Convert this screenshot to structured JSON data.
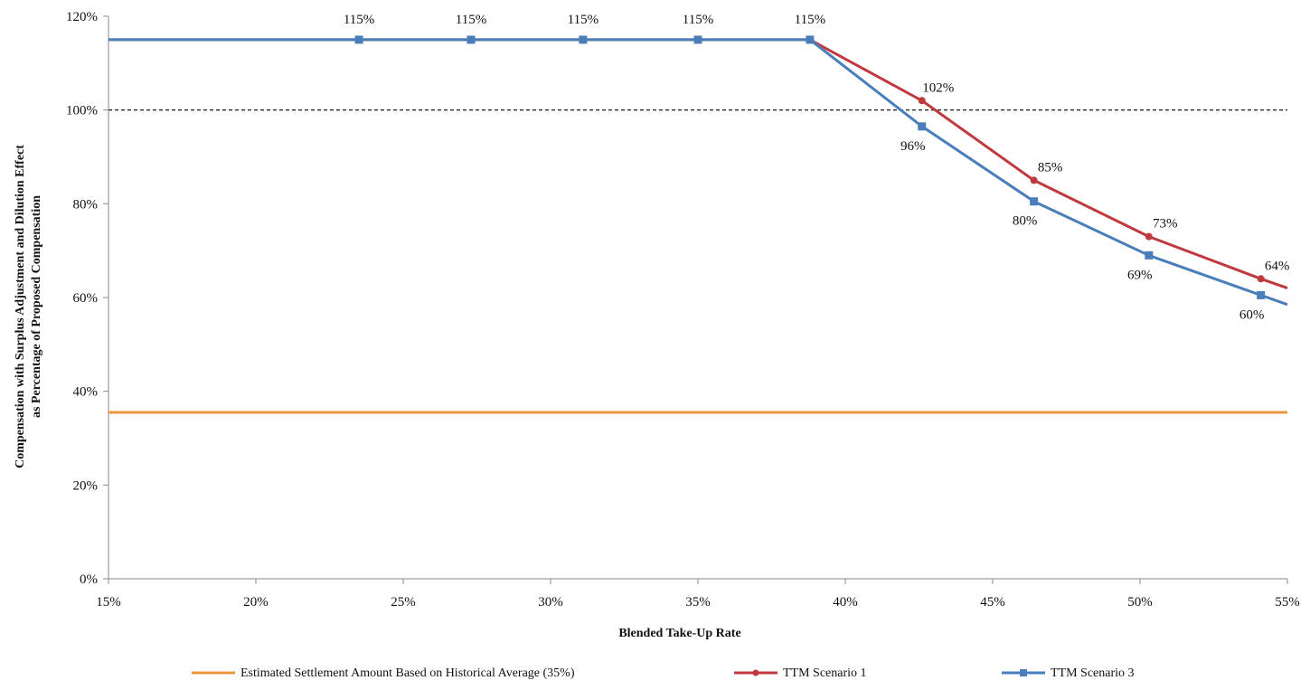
{
  "chart_data": {
    "type": "line",
    "title": "",
    "xlabel": "Blended Take-Up Rate",
    "ylabel_line1": "Compensation with Surplus Adjustment and Dilution Effect",
    "ylabel_line2": "as Percentage of Proposed Compensation",
    "xlim": [
      15,
      55
    ],
    "ylim": [
      0,
      120
    ],
    "x_ticks": [
      15,
      20,
      25,
      30,
      35,
      40,
      45,
      50,
      55
    ],
    "x_tick_labels": [
      "15%",
      "20%",
      "25%",
      "30%",
      "35%",
      "40%",
      "45%",
      "50%",
      "55%"
    ],
    "y_ticks": [
      0,
      20,
      40,
      60,
      80,
      100,
      120
    ],
    "y_tick_labels": [
      "0%",
      "20%",
      "40%",
      "60%",
      "80%",
      "100%",
      "120%"
    ],
    "grid": false,
    "reference_line": {
      "y": 100,
      "style": "dashed",
      "color": "#000000"
    },
    "legend_position": "bottom",
    "series": [
      {
        "name": "Estimated Settlement Amount Based on Historical Average (35%)",
        "color": "#f0963a",
        "marker": "none",
        "points": [
          [
            15,
            35.5
          ],
          [
            55,
            35.5
          ]
        ],
        "labels": []
      },
      {
        "name": "TTM Scenario 1",
        "color": "#c0393f",
        "marker": "circle",
        "points": [
          [
            15,
            115
          ],
          [
            23.5,
            115
          ],
          [
            27.3,
            115
          ],
          [
            31.1,
            115
          ],
          [
            35,
            115
          ],
          [
            38.8,
            115
          ],
          [
            42.6,
            102
          ],
          [
            46.4,
            85
          ],
          [
            50.3,
            73
          ],
          [
            54.1,
            64
          ],
          [
            55,
            62
          ]
        ],
        "labels": [
          {
            "x": 42.6,
            "y": 102,
            "text": "102%"
          },
          {
            "x": 46.4,
            "y": 85,
            "text": "85%"
          },
          {
            "x": 50.3,
            "y": 73,
            "text": "73%"
          },
          {
            "x": 54.1,
            "y": 64,
            "text": "64%"
          }
        ]
      },
      {
        "name": "TTM Scenario 3",
        "color": "#4a7ebb",
        "marker": "square",
        "points": [
          [
            15,
            115
          ],
          [
            23.5,
            115
          ],
          [
            27.3,
            115
          ],
          [
            31.1,
            115
          ],
          [
            35,
            115
          ],
          [
            38.8,
            115
          ],
          [
            42.6,
            96.5
          ],
          [
            46.4,
            80.5
          ],
          [
            50.3,
            69
          ],
          [
            54.1,
            60.5
          ],
          [
            55,
            58.5
          ]
        ],
        "labels": [
          {
            "x": 23.5,
            "y": 115,
            "text": "115%"
          },
          {
            "x": 27.3,
            "y": 115,
            "text": "115%"
          },
          {
            "x": 31.1,
            "y": 115,
            "text": "115%"
          },
          {
            "x": 35,
            "y": 115,
            "text": "115%"
          },
          {
            "x": 38.8,
            "y": 115,
            "text": "115%"
          },
          {
            "x": 42.6,
            "y": 96.5,
            "text": "96%"
          },
          {
            "x": 46.4,
            "y": 80.5,
            "text": "80%"
          },
          {
            "x": 50.3,
            "y": 69,
            "text": "69%"
          },
          {
            "x": 54.1,
            "y": 60.5,
            "text": "60%"
          }
        ]
      }
    ]
  }
}
